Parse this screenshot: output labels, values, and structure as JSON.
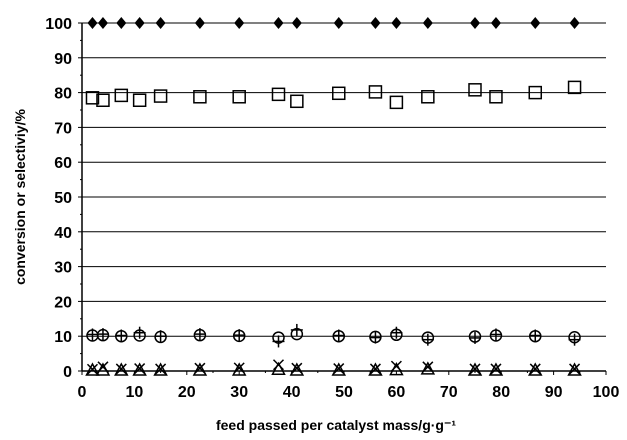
{
  "chart_data": {
    "type": "scatter",
    "title": "",
    "xlabel": "feed passed per catalyst mass/g·g⁻¹",
    "ylabel": "conversion or selectiviy/%",
    "xlim": [
      0,
      100
    ],
    "ylim": [
      0,
      100
    ],
    "xticks": [
      "0",
      "10",
      "20",
      "30",
      "40",
      "50",
      "60",
      "70",
      "80",
      "90",
      "100"
    ],
    "yticks": [
      "0",
      "10",
      "20",
      "30",
      "40",
      "50",
      "60",
      "70",
      "80",
      "90",
      "100"
    ],
    "grid": "horizontal",
    "legend": "none",
    "series": [
      {
        "marker": "filled-diamond",
        "x": [
          2,
          4,
          7.5,
          11,
          15,
          22.5,
          30,
          37.5,
          41,
          49,
          56,
          60,
          66,
          75,
          79,
          86.5,
          94
        ],
        "y": [
          100,
          100,
          100,
          100,
          100,
          100,
          100,
          100,
          100,
          100,
          100,
          100,
          100,
          100,
          100,
          100,
          100
        ]
      },
      {
        "marker": "open-square",
        "x": [
          2,
          4,
          7.5,
          11,
          15,
          22.5,
          30,
          37.5,
          41,
          49,
          56,
          60,
          66,
          75,
          79,
          86.5,
          94
        ],
        "y": [
          78.5,
          77.8,
          79.2,
          77.8,
          79,
          78.8,
          78.8,
          79.5,
          77.5,
          79.8,
          80.2,
          77.2,
          78.8,
          80.8,
          78.8,
          80,
          81.5
        ]
      },
      {
        "marker": "open-circle",
        "x": [
          2,
          4,
          7.5,
          11,
          15,
          22.5,
          30,
          37.5,
          41,
          49,
          56,
          60,
          66,
          75,
          79,
          86.5,
          94
        ],
        "y": [
          10.2,
          10.3,
          10,
          10.2,
          9.8,
          10.3,
          10.1,
          9.6,
          10.6,
          10,
          9.8,
          10.4,
          9.6,
          9.9,
          10.2,
          10,
          9.7
        ]
      },
      {
        "marker": "plus",
        "x": [
          2,
          4,
          7.5,
          11,
          15,
          22.5,
          30,
          37.5,
          41,
          49,
          56,
          60,
          66,
          75,
          79,
          86.5,
          94
        ],
        "y": [
          10.5,
          10.6,
          10.2,
          11,
          10,
          10.6,
          10.3,
          8.5,
          11.8,
          10.2,
          9.6,
          11,
          9,
          9.5,
          10.5,
          10.2,
          9
        ]
      },
      {
        "marker": "x-cross",
        "x": [
          2,
          4,
          7.5,
          11,
          15,
          22.5,
          30,
          37.5,
          41,
          49,
          56,
          60,
          66,
          75,
          79,
          86.5,
          94
        ],
        "y": [
          0.5,
          1.2,
          0.6,
          0.7,
          0.6,
          0.8,
          0.9,
          1.8,
          0.8,
          0.7,
          0.6,
          1.4,
          1.2,
          0.6,
          0.6,
          0.6,
          0.6
        ]
      },
      {
        "marker": "open-triangle",
        "x": [
          2,
          4,
          7.5,
          11,
          15,
          22.5,
          30,
          37.5,
          41,
          49,
          56,
          60,
          66,
          75,
          79,
          86.5,
          94
        ],
        "y": [
          0.3,
          0.3,
          0.3,
          0.3,
          0.3,
          0.3,
          0.3,
          0.5,
          0.3,
          0.3,
          0.3,
          0.4,
          0.6,
          0.3,
          0.3,
          0.3,
          0.3
        ]
      }
    ]
  }
}
